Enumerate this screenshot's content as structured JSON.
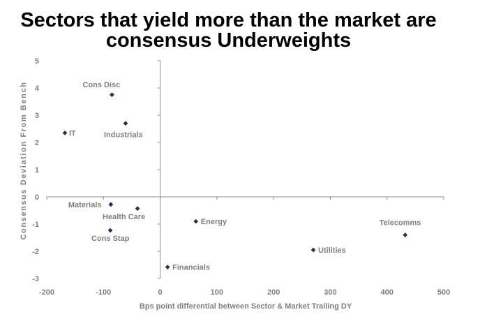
{
  "title": {
    "line1": "Sectors that yield more than the market are",
    "line2": "consensus Underweights"
  },
  "chart_data": {
    "type": "scatter",
    "xlabel": "Bps point differential between Sector & Market Trailing DY",
    "ylabel": "Consensus Deviation From Bench",
    "xlim": [
      -200,
      500
    ],
    "ylim": [
      -3,
      5
    ],
    "xticks": [
      -200,
      -100,
      0,
      100,
      200,
      300,
      400,
      500
    ],
    "yticks": [
      -3,
      -2,
      -1,
      0,
      1,
      2,
      3,
      4,
      5
    ],
    "grid": false,
    "marker_color": "#17375e",
    "points": [
      {
        "label": "Cons Disc",
        "x": -85,
        "y": 3.75
      },
      {
        "label": "IT",
        "x": -168,
        "y": 2.35
      },
      {
        "label": "Industrials",
        "x": -61,
        "y": 2.7
      },
      {
        "label": "Materials",
        "x": -87,
        "y": -0.28
      },
      {
        "label": "Health Care",
        "x": -40,
        "y": -0.43
      },
      {
        "label": "Cons Stap",
        "x": -88,
        "y": -1.23
      },
      {
        "label": "Energy",
        "x": 63,
        "y": -0.9
      },
      {
        "label": "Financials",
        "x": 13,
        "y": -2.58
      },
      {
        "label": "Utilities",
        "x": 270,
        "y": -1.95
      },
      {
        "label": "Telecomms",
        "x": 432,
        "y": -1.4
      }
    ]
  }
}
